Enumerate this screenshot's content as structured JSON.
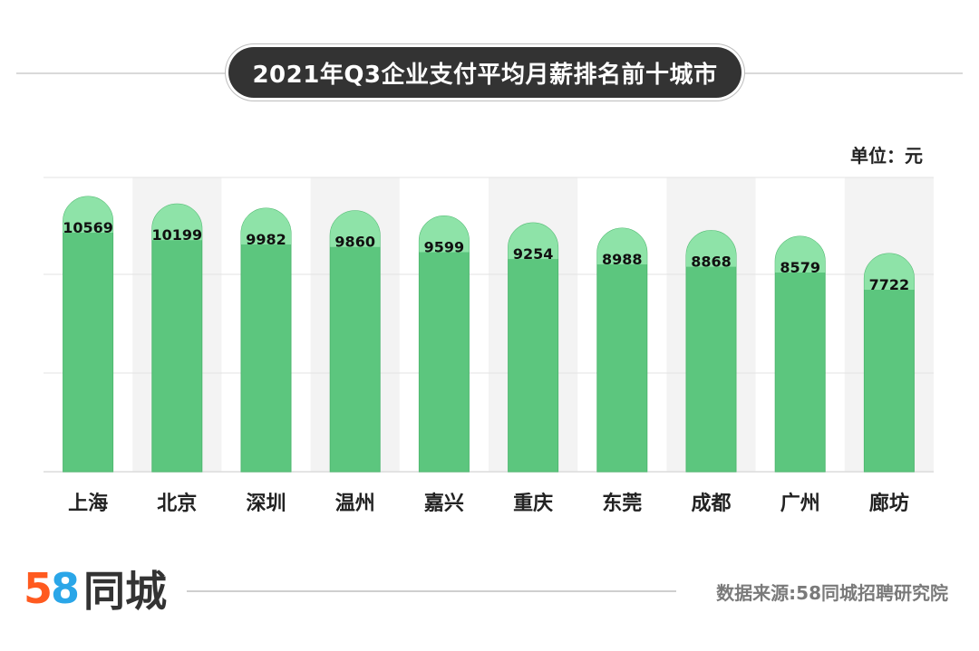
{
  "chart_data": {
    "type": "bar",
    "title": "2021年Q3企业支付平均月薪排名前十城市",
    "unit_label": "单位：元",
    "categories": [
      "上海",
      "北京",
      "深圳",
      "温州",
      "嘉兴",
      "重庆",
      "东莞",
      "成都",
      "广州",
      "廊坊"
    ],
    "values": [
      10569,
      10199,
      9982,
      9860,
      9599,
      9254,
      8988,
      8868,
      8579,
      7722
    ],
    "data_labels": [
      "10569",
      "10199",
      "9982",
      "9860",
      "9599",
      "9254",
      "8988",
      "8868",
      "8579",
      "7722"
    ],
    "bar_color": "#5cc67e",
    "cap_color": "#8ee3a8",
    "grid": true
  },
  "footer": {
    "logo_5": "5",
    "logo_8": "8",
    "logo_text": "同城",
    "source": "数据来源:58同城招聘研究院"
  }
}
